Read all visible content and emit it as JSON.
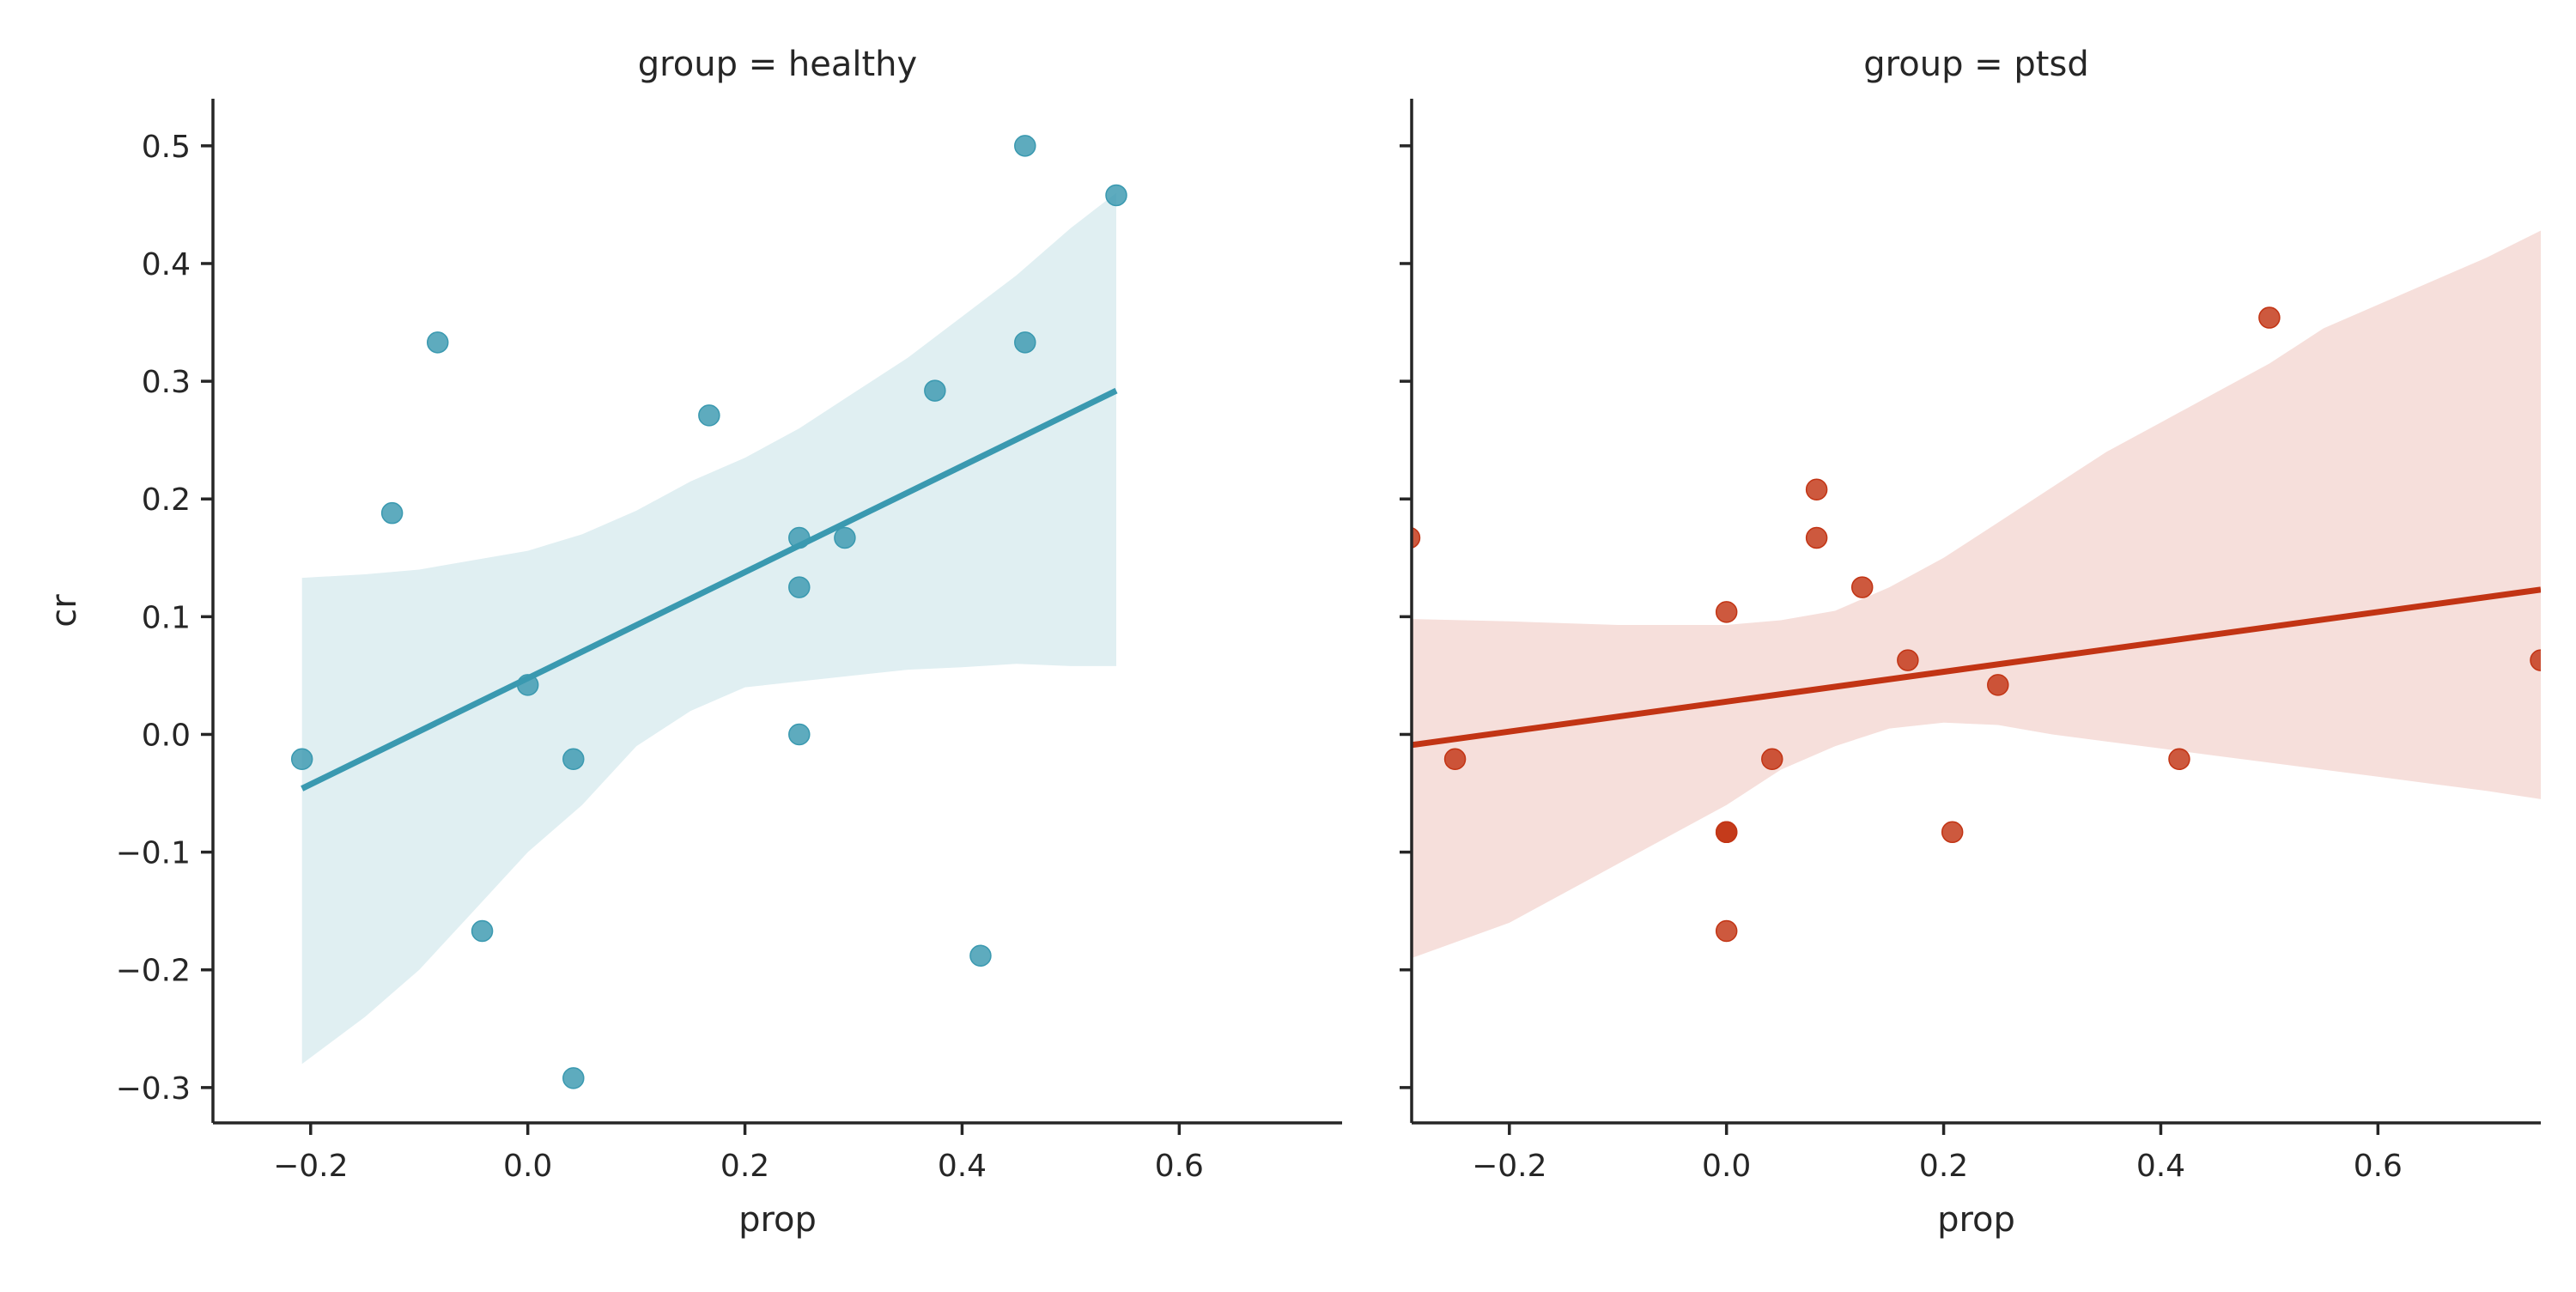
{
  "chart_data": [
    {
      "type": "scatter",
      "title": "group = healthy",
      "xlabel": "prop",
      "ylabel": "cr",
      "xlim": [
        -0.29,
        0.75
      ],
      "ylim": [
        -0.33,
        0.54
      ],
      "xticks": [
        -0.2,
        0.0,
        0.2,
        0.4,
        0.6
      ],
      "yticks": [
        -0.3,
        -0.2,
        -0.1,
        0.0,
        0.1,
        0.2,
        0.3,
        0.4,
        0.5
      ],
      "color": "#3a99b0",
      "band_color": "#e0eff2",
      "points": {
        "x": [
          -0.208,
          -0.125,
          -0.083,
          -0.042,
          0.0,
          0.042,
          0.042,
          0.167,
          0.25,
          0.25,
          0.25,
          0.292,
          0.375,
          0.417,
          0.458,
          0.458,
          0.542
        ],
        "y": [
          -0.021,
          0.188,
          0.333,
          -0.167,
          0.042,
          -0.021,
          -0.292,
          0.271,
          0.167,
          0.125,
          0.0,
          0.167,
          0.292,
          -0.188,
          0.5,
          0.333,
          0.458
        ]
      },
      "regression": {
        "x": [
          -0.208,
          0.542
        ],
        "y": [
          -0.046,
          0.292
        ]
      },
      "ci_band": {
        "x": [
          -0.208,
          -0.15,
          -0.1,
          -0.05,
          0.0,
          0.05,
          0.1,
          0.15,
          0.2,
          0.25,
          0.3,
          0.35,
          0.4,
          0.45,
          0.5,
          0.542
        ],
        "lower": [
          -0.28,
          -0.24,
          -0.2,
          -0.15,
          -0.1,
          -0.06,
          -0.01,
          0.02,
          0.04,
          0.045,
          0.05,
          0.055,
          0.057,
          0.06,
          0.058,
          0.058
        ],
        "upper": [
          0.133,
          0.136,
          0.14,
          0.148,
          0.156,
          0.17,
          0.19,
          0.215,
          0.235,
          0.26,
          0.29,
          0.32,
          0.355,
          0.39,
          0.43,
          0.46
        ]
      }
    },
    {
      "type": "scatter",
      "title": "group = ptsd",
      "xlabel": "prop",
      "ylabel": "",
      "xlim": [
        -0.29,
        0.75
      ],
      "ylim": [
        -0.33,
        0.54
      ],
      "xticks": [
        -0.2,
        0.0,
        0.2,
        0.4,
        0.6
      ],
      "yticks": [
        -0.3,
        -0.2,
        -0.1,
        0.0,
        0.1,
        0.2,
        0.3,
        0.4,
        0.5
      ],
      "color": "#c23414",
      "band_color": "#f6dfdb",
      "points": {
        "x": [
          -0.292,
          -0.25,
          0.0,
          0.0,
          0.0,
          0.0,
          0.042,
          0.083,
          0.083,
          0.125,
          0.167,
          0.208,
          0.25,
          0.417,
          0.5,
          0.75
        ],
        "y": [
          0.167,
          -0.021,
          0.104,
          -0.083,
          -0.083,
          -0.167,
          -0.021,
          0.208,
          0.167,
          0.125,
          0.063,
          -0.083,
          0.042,
          -0.021,
          0.354,
          0.063
        ]
      },
      "regression": {
        "x": [
          -0.29,
          0.75
        ],
        "y": [
          -0.009,
          0.123
        ]
      },
      "ci_band": {
        "x": [
          -0.29,
          -0.2,
          -0.1,
          0.0,
          0.05,
          0.1,
          0.15,
          0.2,
          0.25,
          0.3,
          0.35,
          0.4,
          0.45,
          0.5,
          0.55,
          0.6,
          0.65,
          0.7,
          0.75
        ],
        "lower": [
          -0.19,
          -0.16,
          -0.11,
          -0.06,
          -0.03,
          -0.01,
          0.005,
          0.01,
          0.008,
          0.0,
          -0.006,
          -0.012,
          -0.018,
          -0.024,
          -0.03,
          -0.036,
          -0.042,
          -0.048,
          -0.055
        ],
        "upper": [
          0.098,
          0.096,
          0.093,
          0.093,
          0.097,
          0.105,
          0.125,
          0.15,
          0.18,
          0.21,
          0.24,
          0.265,
          0.29,
          0.315,
          0.345,
          0.365,
          0.385,
          0.405,
          0.428
        ]
      }
    }
  ]
}
